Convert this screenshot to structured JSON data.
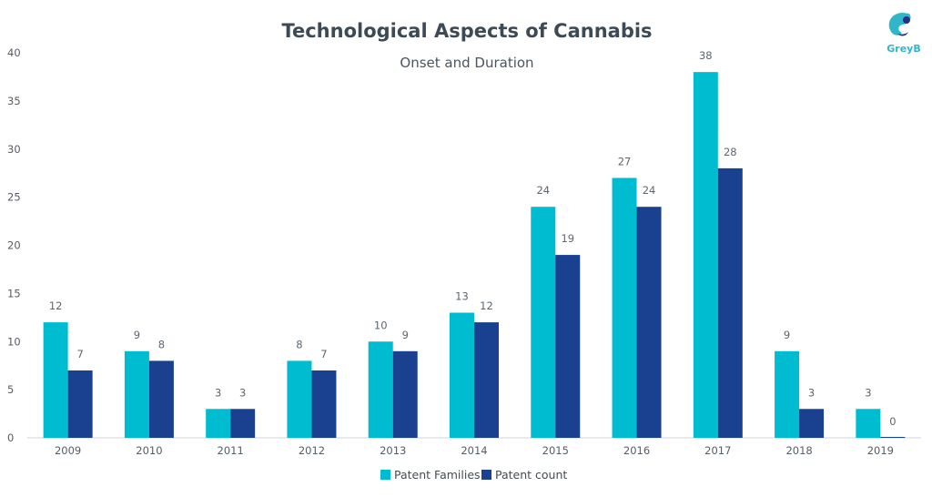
{
  "chart_data": {
    "type": "bar",
    "title": "Technological Aspects of Cannabis",
    "subtitle": "Onset and Duration",
    "xlabel": "",
    "ylabel": "",
    "categories": [
      "2009",
      "2010",
      "2011",
      "2012",
      "2013",
      "2014",
      "2015",
      "2016",
      "2017",
      "2018",
      "2019"
    ],
    "series": [
      {
        "name": "Patent Families",
        "color": "#00bcd0",
        "values": [
          12,
          9,
          3,
          8,
          10,
          13,
          24,
          27,
          38,
          9,
          3
        ]
      },
      {
        "name": "Patent count",
        "color": "#1a4190",
        "values": [
          7,
          8,
          3,
          7,
          9,
          12,
          19,
          24,
          28,
          3,
          0
        ]
      }
    ],
    "ylim": [
      0,
      40
    ],
    "yticks": [
      0,
      5,
      10,
      15,
      20,
      25,
      30,
      35,
      40
    ],
    "grid": false,
    "data_labels": true,
    "legend_position": "bottom-center"
  },
  "brand": {
    "logo_text": "GreyB",
    "logo_icon": "greyb-logo-icon",
    "color": "#2fb7c9"
  }
}
